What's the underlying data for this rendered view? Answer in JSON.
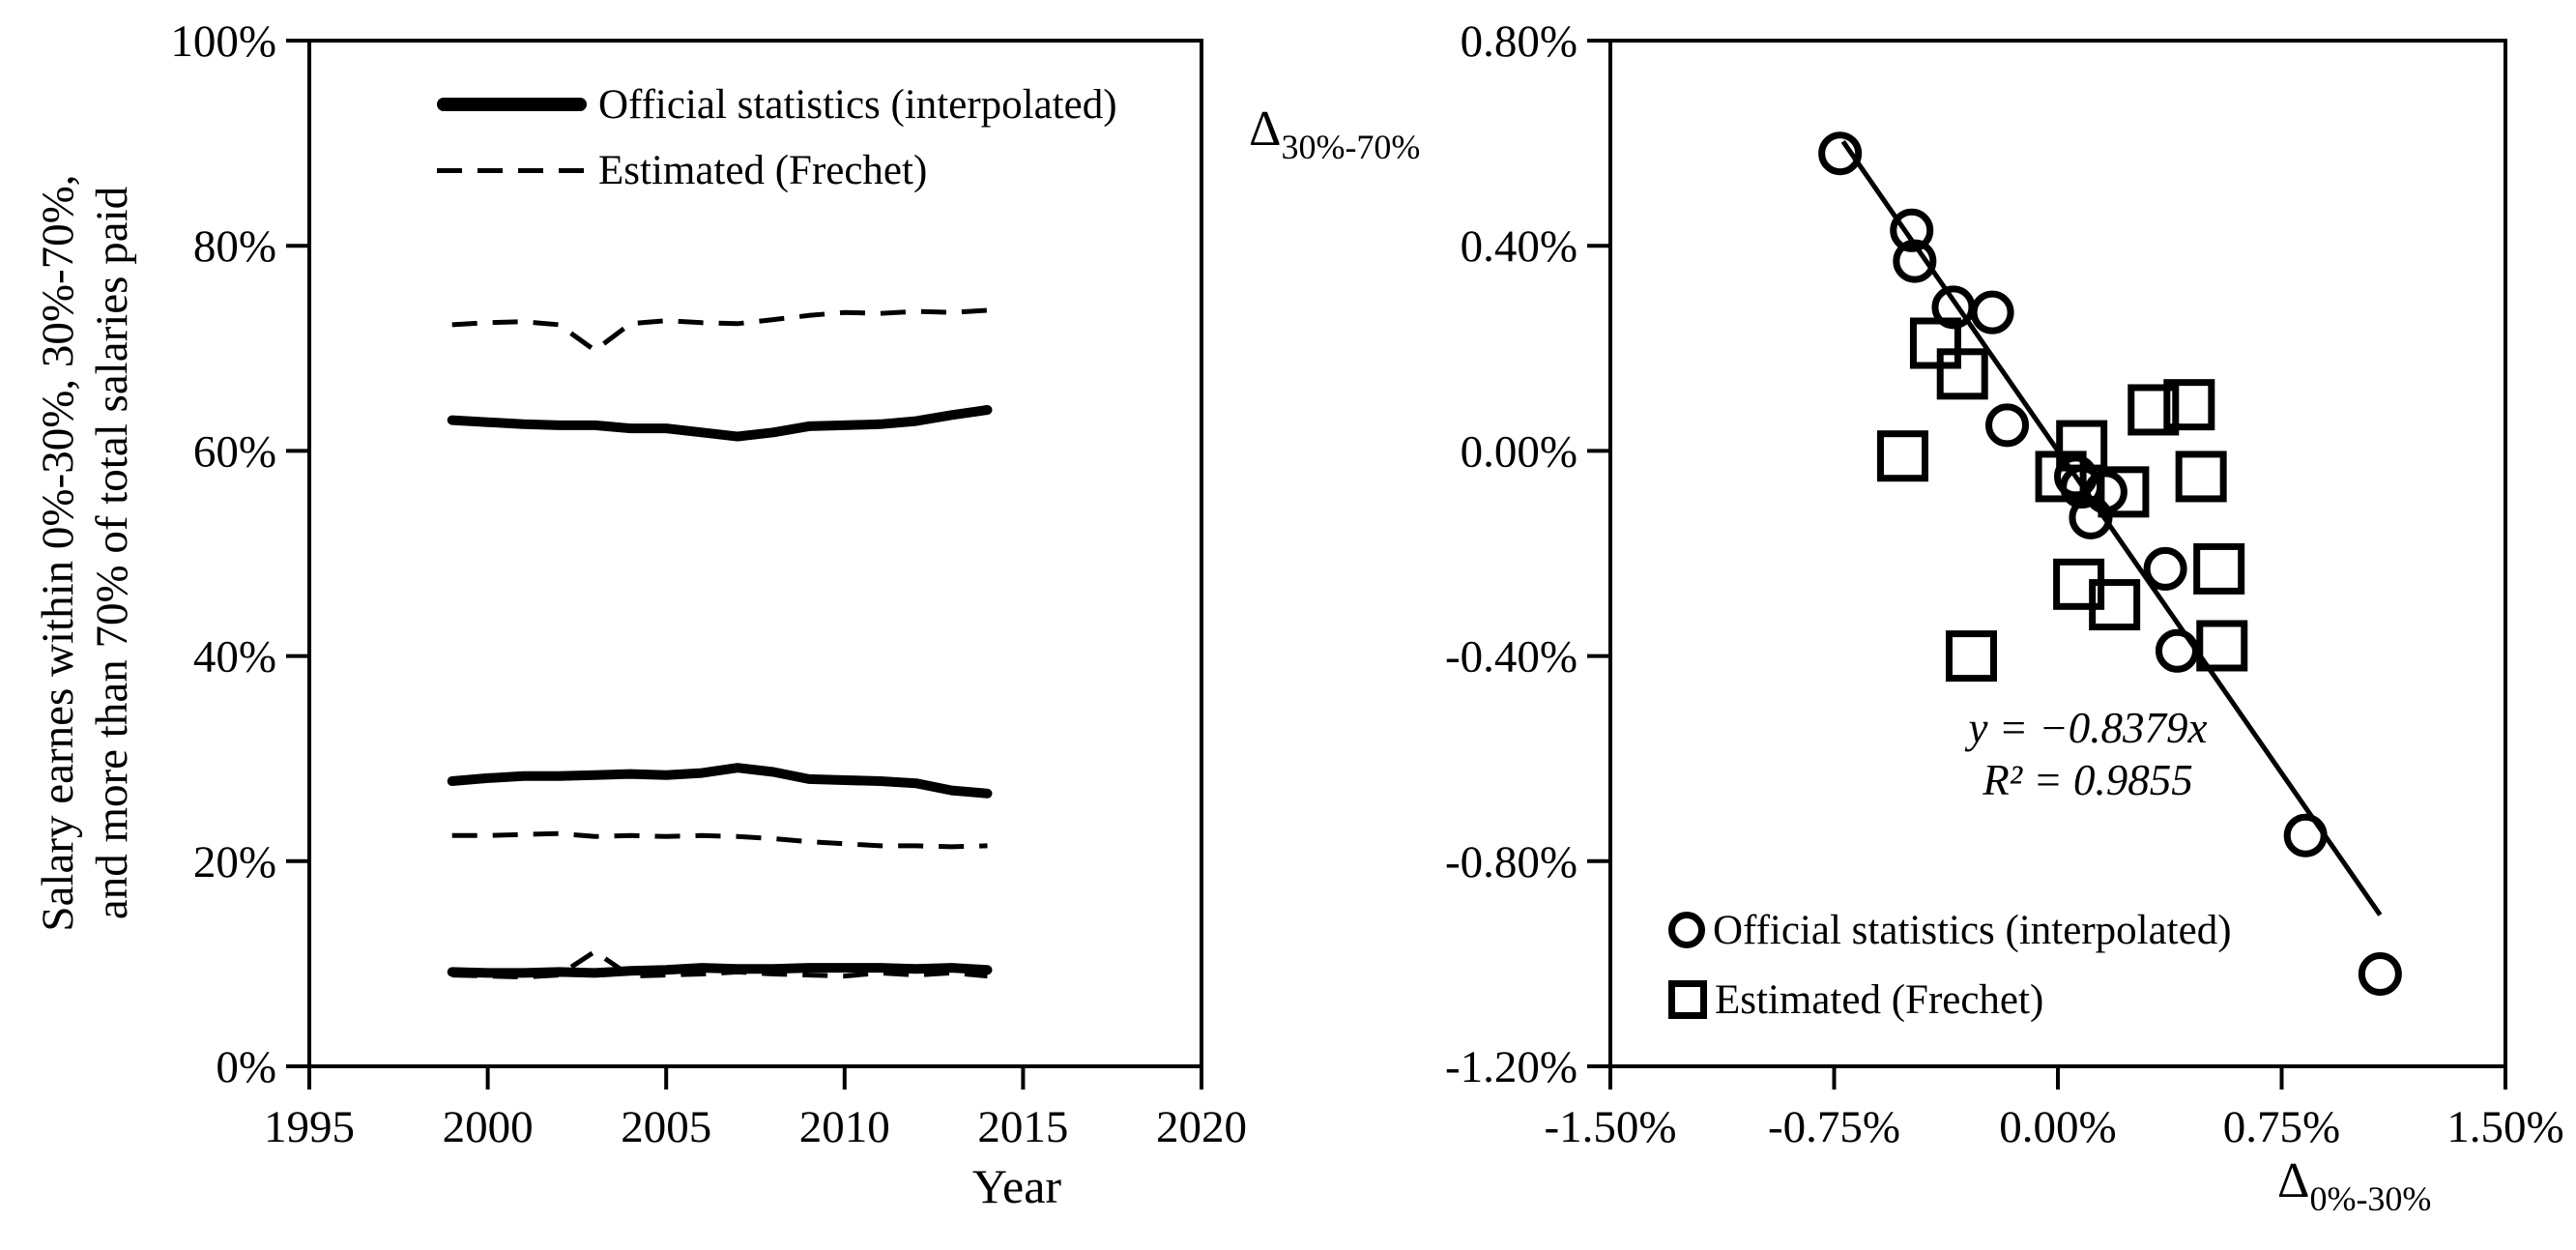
{
  "page": {
    "background": "#ffffff",
    "ink": "#000000"
  },
  "chart_data": [
    {
      "id": "salary-shares-timeseries",
      "type": "line",
      "title": "",
      "xlabel": "Year",
      "ylabel_lines": [
        "Salary earnes within 0%-30%, 30%-70%,",
        "and more than 70% of total salaries paid"
      ],
      "xlim": [
        1995,
        2020
      ],
      "ylim": [
        0,
        100
      ],
      "grid": false,
      "xticks": [
        {
          "v": 1995,
          "label": "1995"
        },
        {
          "v": 2000,
          "label": "2000"
        },
        {
          "v": 2005,
          "label": "2005"
        },
        {
          "v": 2010,
          "label": "2010"
        },
        {
          "v": 2015,
          "label": "2015"
        },
        {
          "v": 2020,
          "label": "2020"
        }
      ],
      "yticks": [
        {
          "v": 0,
          "label": "0%"
        },
        {
          "v": 20,
          "label": "20%"
        },
        {
          "v": 40,
          "label": "40%"
        },
        {
          "v": 60,
          "label": "60%"
        },
        {
          "v": 80,
          "label": "80%"
        },
        {
          "v": 100,
          "label": "100%"
        }
      ],
      "legend": [
        {
          "label": "Official statistics (interpolated)",
          "style": "solid"
        },
        {
          "label": "Estimated (Frechet)",
          "style": "dashed"
        }
      ],
      "x": [
        1999,
        2000,
        2001,
        2002,
        2003,
        2004,
        2005,
        2006,
        2007,
        2008,
        2009,
        2010,
        2011,
        2012,
        2013,
        2014
      ],
      "series": [
        {
          "name": "official-more-than-70",
          "style": "solid",
          "values": [
            63.0,
            62.8,
            62.6,
            62.5,
            62.5,
            62.2,
            62.2,
            61.8,
            61.4,
            61.8,
            62.4,
            62.5,
            62.6,
            62.9,
            63.5,
            64.0
          ]
        },
        {
          "name": "estimated-more-than-70",
          "style": "dashed",
          "values": [
            72.3,
            72.5,
            72.6,
            72.3,
            69.8,
            72.4,
            72.7,
            72.5,
            72.4,
            72.8,
            73.2,
            73.5,
            73.4,
            73.6,
            73.5,
            73.7
          ]
        },
        {
          "name": "official-30-70",
          "style": "solid",
          "values": [
            27.8,
            28.1,
            28.3,
            28.3,
            28.4,
            28.5,
            28.4,
            28.6,
            29.1,
            28.7,
            28.0,
            27.9,
            27.8,
            27.6,
            26.9,
            26.6
          ]
        },
        {
          "name": "estimated-30-70",
          "style": "dashed",
          "values": [
            22.5,
            22.5,
            22.6,
            22.7,
            22.4,
            22.5,
            22.4,
            22.5,
            22.4,
            22.2,
            21.9,
            21.7,
            21.5,
            21.5,
            21.4,
            21.5
          ]
        },
        {
          "name": "official-0-30",
          "style": "solid",
          "values": [
            9.2,
            9.1,
            9.1,
            9.2,
            9.1,
            9.3,
            9.4,
            9.6,
            9.5,
            9.5,
            9.6,
            9.6,
            9.6,
            9.5,
            9.6,
            9.4
          ]
        },
        {
          "name": "estimated-0-30",
          "style": "dashed",
          "values": [
            8.9,
            8.8,
            8.7,
            8.9,
            11.2,
            8.8,
            8.9,
            9.0,
            9.2,
            9.0,
            8.9,
            8.8,
            9.1,
            8.9,
            9.1,
            8.8
          ]
        }
      ]
    },
    {
      "id": "delta-scatter",
      "type": "scatter",
      "title": "",
      "xlabel": {
        "base": "Δ",
        "sub": "0%-30%"
      },
      "ylabel": {
        "base": "Δ",
        "sub": "30%-70%"
      },
      "xlim": [
        -1.5,
        1.5
      ],
      "ylim": [
        -1.2,
        0.8
      ],
      "grid": false,
      "xticks": [
        {
          "v": -1.5,
          "label": "-1.50%"
        },
        {
          "v": -0.75,
          "label": "-0.75%"
        },
        {
          "v": 0,
          "label": "0.00%"
        },
        {
          "v": 0.75,
          "label": "0.75%"
        },
        {
          "v": 1.5,
          "label": "1.50%"
        }
      ],
      "yticks": [
        {
          "v": 0.8,
          "label": "0.80%"
        },
        {
          "v": 0.4,
          "label": "0.40%"
        },
        {
          "v": 0,
          "label": "0.00%"
        },
        {
          "v": -0.4,
          "label": "-0.40%"
        },
        {
          "v": -0.8,
          "label": "-0.80%"
        },
        {
          "v": -1.2,
          "label": "-1.20%"
        }
      ],
      "equation_line1": "y = −0.8379x",
      "equation_line2": "R² = 0.9855",
      "trendline": {
        "slope": -0.8379,
        "intercept": 0,
        "x_range": [
          -0.72,
          1.08
        ]
      },
      "legend": [
        {
          "label": "Official statistics (interpolated)",
          "marker": "circle"
        },
        {
          "label": "Estimated (Frechet)",
          "marker": "square"
        }
      ],
      "series": [
        {
          "name": "official",
          "marker": "circle",
          "points": [
            [
              -0.73,
              0.58
            ],
            [
              -0.49,
              0.43
            ],
            [
              -0.48,
              0.37
            ],
            [
              -0.35,
              0.28
            ],
            [
              -0.22,
              0.27
            ],
            [
              -0.17,
              0.05
            ],
            [
              0.06,
              -0.05
            ],
            [
              0.08,
              -0.07
            ],
            [
              0.16,
              -0.08
            ],
            [
              0.11,
              -0.13
            ],
            [
              0.36,
              -0.23
            ],
            [
              0.4,
              -0.39
            ],
            [
              0.83,
              -0.75
            ],
            [
              1.08,
              -1.02
            ]
          ]
        },
        {
          "name": "estimated",
          "marker": "square",
          "points": [
            [
              -0.52,
              -0.01
            ],
            [
              -0.41,
              0.21
            ],
            [
              -0.32,
              0.15
            ],
            [
              -0.29,
              -0.4
            ],
            [
              0.08,
              0.01
            ],
            [
              0.01,
              -0.05
            ],
            [
              0.22,
              -0.08
            ],
            [
              0.32,
              0.08
            ],
            [
              0.44,
              0.09
            ],
            [
              0.48,
              -0.05
            ],
            [
              0.54,
              -0.23
            ],
            [
              0.07,
              -0.26
            ],
            [
              0.19,
              -0.3
            ],
            [
              0.55,
              -0.38
            ]
          ]
        }
      ]
    }
  ]
}
